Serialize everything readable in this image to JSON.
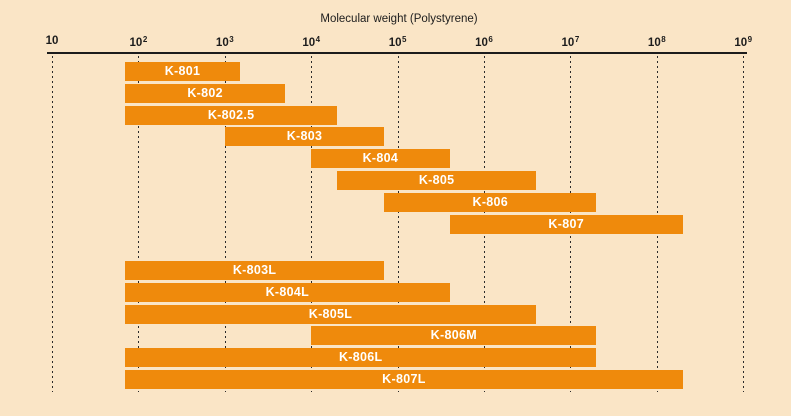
{
  "chart_data": {
    "type": "bar",
    "subtype": "horizontal-log-range-bars",
    "title": "Molecular weight (Polystyrene)",
    "xlabel": "Molecular weight (Polystyrene)",
    "x_scale": "log10",
    "xlim": [
      10,
      1000000000
    ],
    "grid": "vertical-dashed",
    "axis_ticks": [
      {
        "mantissa": "10",
        "exp": ""
      },
      {
        "mantissa": "10",
        "exp": "2"
      },
      {
        "mantissa": "10",
        "exp": "3"
      },
      {
        "mantissa": "10",
        "exp": "4"
      },
      {
        "mantissa": "10",
        "exp": "5"
      },
      {
        "mantissa": "10",
        "exp": "6"
      },
      {
        "mantissa": "10",
        "exp": "7"
      },
      {
        "mantissa": "10",
        "exp": "8"
      },
      {
        "mantissa": "10",
        "exp": "9"
      }
    ],
    "groups": [
      {
        "name": "upper-group",
        "bars": [
          {
            "label": "K-801",
            "mw_min": 70,
            "mw_max": 1500
          },
          {
            "label": "K-802",
            "mw_min": 70,
            "mw_max": 5000
          },
          {
            "label": "K-802.5",
            "mw_min": 70,
            "mw_max": 20000
          },
          {
            "label": "K-803",
            "mw_min": 1000,
            "mw_max": 70000
          },
          {
            "label": "K-804",
            "mw_min": 10000,
            "mw_max": 400000
          },
          {
            "label": "K-805",
            "mw_min": 20000,
            "mw_max": 4000000
          },
          {
            "label": "K-806",
            "mw_min": 70000,
            "mw_max": 20000000
          },
          {
            "label": "K-807",
            "mw_min": 400000,
            "mw_max": 200000000
          }
        ]
      },
      {
        "name": "lower-group",
        "bars": [
          {
            "label": "K-803L",
            "mw_min": 70,
            "mw_max": 70000
          },
          {
            "label": "K-804L",
            "mw_min": 70,
            "mw_max": 400000
          },
          {
            "label": "K-805L",
            "mw_min": 70,
            "mw_max": 4000000
          },
          {
            "label": "K-806M",
            "mw_min": 10000,
            "mw_max": 20000000
          },
          {
            "label": "K-806L",
            "mw_min": 70,
            "mw_max": 20000000
          },
          {
            "label": "K-807L",
            "mw_min": 70,
            "mw_max": 200000000
          }
        ]
      }
    ],
    "colors": {
      "background": "#fae5c6",
      "bar": "#ef8a0c",
      "bar_text": "#ffffff",
      "axis": "#1c1c1c",
      "gridline": "#2a2a2a"
    }
  }
}
